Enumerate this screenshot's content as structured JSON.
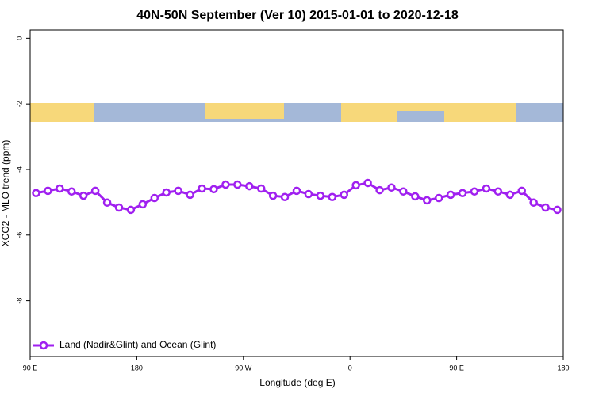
{
  "chart_data": {
    "type": "line",
    "title": "40N-50N September (Ver 10)   2015-01-01 to 2020-12-18",
    "x_label": "Longitude (deg E)",
    "y_label": "XCO2 - MLO trend (ppm)",
    "xlim": [
      90,
      540
    ],
    "ylim": [
      -9.7,
      0.25
    ],
    "xticks": [
      {
        "value": 90,
        "label": "90 E"
      },
      180,
      {
        "value": 270,
        "label": "90 W"
      },
      {
        "value": 360,
        "label": "0"
      },
      {
        "value": 450,
        "label": "90 E"
      },
      {
        "value": 540,
        "label": "180"
      }
    ],
    "yticks": [
      0,
      -2,
      -4,
      -6,
      -8
    ],
    "legend": "bottom-left",
    "x": [
      95,
      105,
      115,
      125,
      135,
      145,
      155,
      165,
      175,
      185,
      195,
      205,
      215,
      225,
      235,
      245,
      255,
      265,
      275,
      285,
      295,
      305,
      315,
      325,
      335,
      345,
      355,
      365,
      375,
      385,
      395,
      405,
      415,
      425,
      435,
      445,
      455,
      465,
      475,
      485,
      495,
      505,
      515,
      525,
      535
    ],
    "series": [
      {
        "name": "Land (Nadir&Glint) and Ocean (Glint)",
        "color": "#a020f0",
        "values": [
          -4.72,
          -4.65,
          -4.58,
          -4.67,
          -4.8,
          -4.65,
          -5.01,
          -5.16,
          -5.23,
          -5.06,
          -4.87,
          -4.7,
          -4.65,
          -4.77,
          -4.58,
          -4.6,
          -4.46,
          -4.46,
          -4.51,
          -4.58,
          -4.8,
          -4.84,
          -4.65,
          -4.75,
          -4.8,
          -4.84,
          -4.77,
          -4.48,
          -4.41,
          -4.63,
          -4.55,
          -4.67,
          -4.82,
          -4.94,
          -4.87,
          -4.77,
          -4.72,
          -4.67,
          -4.58,
          -4.67,
          -4.77,
          -4.65,
          -5.01,
          -5.16,
          -5.23
        ]
      }
    ]
  }
}
